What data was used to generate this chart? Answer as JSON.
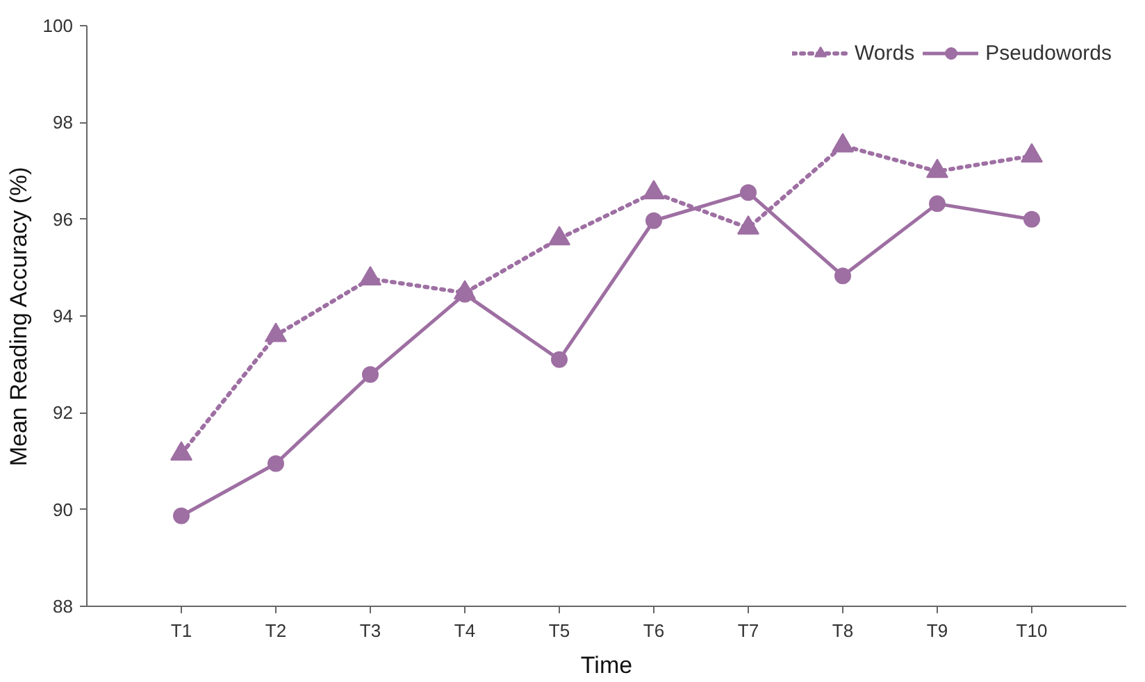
{
  "chart_data": {
    "type": "line",
    "xlabel": "Time",
    "ylabel": "Mean Reading Accuracy (%)",
    "categories": [
      "T1",
      "T2",
      "T3",
      "T4",
      "T5",
      "T6",
      "T7",
      "T8",
      "T9",
      "T10"
    ],
    "series": [
      {
        "name": "Words",
        "color": "#9e6fa3",
        "marker": "triangle",
        "line_style": "dotted",
        "values": [
          91.15,
          93.6,
          94.77,
          94.48,
          95.6,
          96.55,
          95.82,
          97.52,
          96.99,
          97.31
        ]
      },
      {
        "name": "Pseudowords",
        "color": "#9e6fa3",
        "marker": "circle",
        "line_style": "solid",
        "values": [
          89.87,
          90.95,
          92.79,
          94.45,
          93.1,
          95.97,
          96.55,
          94.83,
          96.32,
          96.0
        ]
      }
    ],
    "ylim": [
      88,
      100
    ],
    "yticks": [
      88,
      90,
      92,
      94,
      96,
      98,
      100
    ],
    "grid": false,
    "legend": "top right"
  }
}
